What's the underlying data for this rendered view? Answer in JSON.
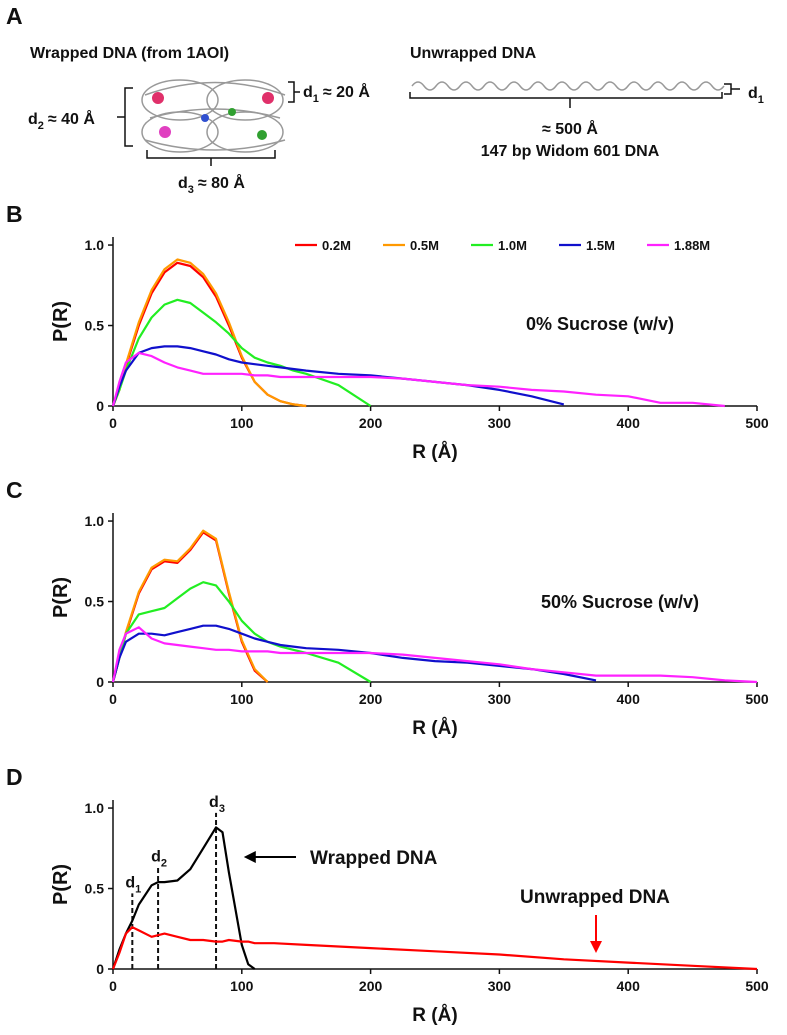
{
  "panel_a": {
    "label": "A",
    "wrapped_title": "Wrapped DNA (from 1AOI)",
    "d2": {
      "symbol": "d",
      "sub": "2",
      "text": "≈ 40 Å"
    },
    "d1": {
      "symbol": "d",
      "sub": "1",
      "text": "≈ 20 Å"
    },
    "d3": {
      "symbol": "d",
      "sub": "3",
      "text": "≈ 80 Å"
    },
    "unwrapped_title": "Unwrapped DNA",
    "unwrapped_d1": {
      "symbol": "d",
      "sub": "1"
    },
    "length": "≈ 500 Å",
    "caption": "147 bp Widom 601 DNA"
  },
  "chart_data": [
    {
      "type": "line",
      "panel": "B",
      "xlabel": "R (Å)",
      "ylabel": "P(R)",
      "annotation": "0% Sucrose (w/v)",
      "legend": "top",
      "xlim": [
        0,
        500
      ],
      "xticks": [
        0,
        100,
        200,
        300,
        400,
        500
      ],
      "ylim": [
        0,
        1.05
      ],
      "yticks": [
        0,
        0.5,
        {
          "value": 1,
          "label": "1.0"
        }
      ],
      "x": [
        0,
        5,
        10,
        20,
        30,
        40,
        50,
        60,
        70,
        80,
        90,
        100,
        110,
        120,
        130,
        140,
        150,
        175,
        200,
        225,
        250,
        275,
        300,
        325,
        350,
        375,
        400,
        425,
        450,
        475,
        500
      ],
      "series": [
        {
          "name": "0.2M",
          "color": "#ff0000",
          "values": [
            0,
            0.1,
            0.25,
            0.5,
            0.7,
            0.83,
            0.89,
            0.87,
            0.8,
            0.68,
            0.5,
            0.3,
            0.15,
            0.07,
            0.03,
            0.01,
            0,
            null,
            null,
            null,
            null,
            null,
            null,
            null,
            null,
            null,
            null,
            null,
            null,
            null,
            null
          ]
        },
        {
          "name": "0.5M",
          "color": "#ff9900",
          "values": [
            0,
            0.1,
            0.26,
            0.52,
            0.72,
            0.85,
            0.91,
            0.89,
            0.82,
            0.7,
            0.52,
            0.31,
            0.15,
            0.07,
            0.03,
            0.01,
            0,
            null,
            null,
            null,
            null,
            null,
            null,
            null,
            null,
            null,
            null,
            null,
            null,
            null,
            null
          ]
        },
        {
          "name": "1.0M",
          "color": "#22ee22",
          "values": [
            0,
            0.1,
            0.22,
            0.42,
            0.55,
            0.63,
            0.66,
            0.64,
            0.58,
            0.52,
            0.45,
            0.36,
            0.3,
            0.27,
            0.25,
            0.22,
            0.2,
            0.13,
            0,
            null,
            null,
            null,
            null,
            null,
            null,
            null,
            null,
            null,
            null,
            null,
            null
          ]
        },
        {
          "name": "1.5M",
          "color": "#1010cc",
          "values": [
            0,
            0.12,
            0.22,
            0.33,
            0.36,
            0.37,
            0.37,
            0.36,
            0.34,
            0.32,
            0.29,
            0.27,
            0.26,
            0.25,
            0.24,
            0.23,
            0.22,
            0.2,
            0.19,
            0.17,
            0.15,
            0.13,
            0.1,
            0.06,
            0.01,
            null,
            null,
            null,
            null,
            null,
            null
          ]
        },
        {
          "name": "1.88M",
          "color": "#ff22ff",
          "values": [
            0,
            0.15,
            0.27,
            0.33,
            0.31,
            0.27,
            0.24,
            0.22,
            0.2,
            0.2,
            0.2,
            0.2,
            0.19,
            0.19,
            0.18,
            0.18,
            0.18,
            0.18,
            0.18,
            0.17,
            0.15,
            0.13,
            0.12,
            0.1,
            0.09,
            0.07,
            0.06,
            0.02,
            0.02,
            0,
            null
          ]
        }
      ]
    },
    {
      "type": "line",
      "panel": "C",
      "xlabel": "R (Å)",
      "ylabel": "P(R)",
      "annotation": "50% Sucrose (w/v)",
      "xlim": [
        0,
        500
      ],
      "xticks": [
        0,
        100,
        200,
        300,
        400,
        500
      ],
      "ylim": [
        0,
        1.05
      ],
      "yticks": [
        0,
        0.5,
        {
          "value": 1,
          "label": "1.0"
        }
      ],
      "x": [
        0,
        5,
        10,
        20,
        30,
        40,
        50,
        60,
        70,
        80,
        90,
        100,
        110,
        120,
        130,
        140,
        150,
        175,
        200,
        225,
        250,
        275,
        300,
        325,
        350,
        375,
        400,
        425,
        450,
        475,
        500
      ],
      "series": [
        {
          "color": "#ff0000",
          "values": [
            0,
            0.15,
            0.3,
            0.55,
            0.7,
            0.75,
            0.74,
            0.82,
            0.93,
            0.88,
            0.55,
            0.25,
            0.07,
            0,
            null,
            null,
            null,
            null,
            null,
            null,
            null,
            null,
            null,
            null,
            null,
            null,
            null,
            null,
            null,
            null,
            null
          ]
        },
        {
          "color": "#ff9900",
          "values": [
            0,
            0.15,
            0.31,
            0.56,
            0.71,
            0.76,
            0.75,
            0.83,
            0.94,
            0.89,
            0.56,
            0.26,
            0.08,
            0,
            null,
            null,
            null,
            null,
            null,
            null,
            null,
            null,
            null,
            null,
            null,
            null,
            null,
            null,
            null,
            null,
            null
          ]
        },
        {
          "color": "#22ee22",
          "values": [
            0,
            0.15,
            0.3,
            0.42,
            0.44,
            0.46,
            0.52,
            0.58,
            0.62,
            0.6,
            0.5,
            0.38,
            0.3,
            0.25,
            0.22,
            0.2,
            0.18,
            0.12,
            0,
            null,
            null,
            null,
            null,
            null,
            null,
            null,
            null,
            null,
            null,
            null,
            null
          ]
        },
        {
          "color": "#1010cc",
          "values": [
            0,
            0.15,
            0.25,
            0.3,
            0.3,
            0.29,
            0.31,
            0.33,
            0.35,
            0.35,
            0.33,
            0.3,
            0.27,
            0.25,
            0.23,
            0.22,
            0.21,
            0.2,
            0.18,
            0.15,
            0.13,
            0.12,
            0.1,
            0.08,
            0.05,
            0.01,
            null,
            null,
            null,
            null,
            null
          ]
        },
        {
          "color": "#ff22ff",
          "values": [
            0,
            0.2,
            0.3,
            0.34,
            0.27,
            0.24,
            0.23,
            0.22,
            0.21,
            0.2,
            0.2,
            0.19,
            0.19,
            0.19,
            0.18,
            0.18,
            0.18,
            0.18,
            0.18,
            0.17,
            0.15,
            0.13,
            0.11,
            0.08,
            0.06,
            0.04,
            0.04,
            0.04,
            0.03,
            0.01,
            0
          ]
        }
      ]
    },
    {
      "type": "line",
      "panel": "D",
      "xlabel": "R (Å)",
      "ylabel": "P(R)",
      "xlim": [
        0,
        500
      ],
      "xticks": [
        0,
        100,
        200,
        300,
        400,
        500
      ],
      "ylim": [
        0,
        1.05
      ],
      "yticks": [
        0,
        0.5,
        {
          "value": 1,
          "label": "1.0"
        }
      ],
      "x": [
        0,
        5,
        10,
        15,
        20,
        30,
        35,
        40,
        50,
        60,
        70,
        80,
        85,
        90,
        100,
        105,
        110,
        125,
        150,
        175,
        200,
        250,
        300,
        350,
        400,
        450,
        500
      ],
      "series": [
        {
          "name": "Wrapped DNA",
          "color": "#000000",
          "values": [
            0,
            0.12,
            0.22,
            0.3,
            0.4,
            0.52,
            0.54,
            0.54,
            0.55,
            0.62,
            0.75,
            0.88,
            0.85,
            0.6,
            0.15,
            0.03,
            0,
            null,
            null,
            null,
            null,
            null,
            null,
            null,
            null,
            null,
            null
          ]
        },
        {
          "name": "Unwrapped DNA",
          "color": "#ff0000",
          "values": [
            0,
            0.1,
            0.22,
            0.26,
            0.24,
            0.2,
            0.21,
            0.22,
            0.2,
            0.18,
            0.18,
            0.17,
            0.17,
            0.18,
            0.17,
            0.17,
            0.16,
            0.16,
            0.15,
            0.14,
            0.13,
            0.11,
            0.09,
            0.06,
            0.04,
            0.02,
            0
          ]
        }
      ],
      "markers": [
        {
          "symbol": "d",
          "sub": "1",
          "x": 15,
          "y": 0.47
        },
        {
          "symbol": "d",
          "sub": "2",
          "x": 35,
          "y": 0.63
        },
        {
          "symbol": "d",
          "sub": "3",
          "x": 80,
          "y": 0.97
        }
      ]
    }
  ]
}
